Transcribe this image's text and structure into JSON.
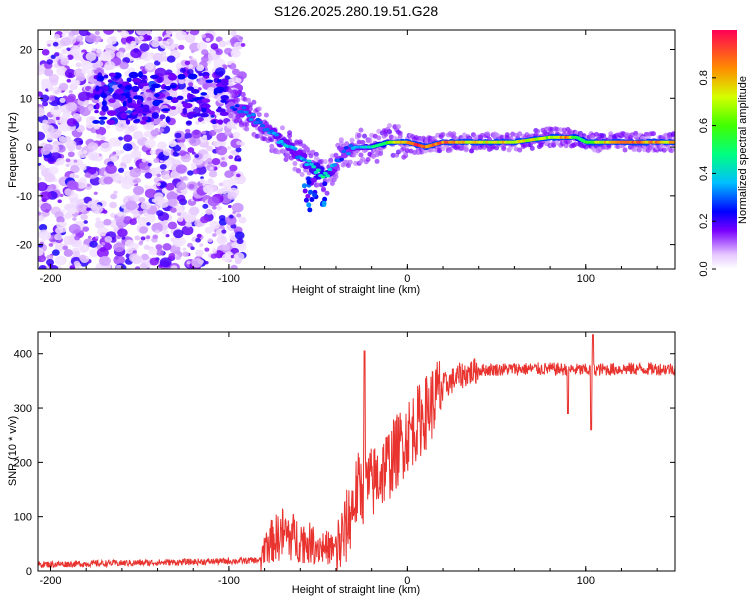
{
  "title": "S126.2025.280.19.51.G28",
  "chart_data": [
    {
      "type": "heatmap",
      "xlabel": "Height of straight line (km)",
      "ylabel": "Frequency (Hz)",
      "xlim": [
        -207,
        150
      ],
      "ylim": [
        -25,
        24
      ],
      "xticks": [
        -200,
        -100,
        0,
        100
      ],
      "yticks": [
        -20,
        -10,
        0,
        10,
        20
      ],
      "colorbar": {
        "label": "Normalized spectral amplitude",
        "range": [
          0,
          1
        ],
        "ticks": [
          "0.0",
          "0.2",
          "0.4",
          "0.6",
          "0.8"
        ],
        "tick_values": [
          0.0,
          0.2,
          0.4,
          0.6,
          0.8
        ]
      },
      "ridge": {
        "x": [
          -100,
          -90,
          -80,
          -70,
          -60,
          -50,
          -45,
          -40,
          -35,
          -30,
          -20,
          -10,
          0,
          10,
          20,
          40,
          60,
          80,
          90,
          95,
          100,
          120,
          150
        ],
        "freq": [
          9,
          7,
          4,
          1,
          -2,
          -5,
          -6,
          -3,
          -1,
          0,
          0,
          1,
          1,
          0,
          1,
          1,
          1,
          2,
          2,
          2,
          1,
          1,
          1
        ],
        "amplitude": [
          0.25,
          0.35,
          0.3,
          0.4,
          0.35,
          0.45,
          0.5,
          0.3,
          0.3,
          0.35,
          0.45,
          0.6,
          0.9,
          0.95,
          0.9,
          0.75,
          0.8,
          0.7,
          0.9,
          0.5,
          0.6,
          0.95,
          0.8
        ]
      }
    },
    {
      "type": "line",
      "xlabel": "Height of straight line (km)",
      "ylabel": "SNR (10 * v/v)",
      "xlim": [
        -207,
        150
      ],
      "ylim": [
        0,
        440
      ],
      "xticks": [
        -200,
        -100,
        0,
        100
      ],
      "yticks": [
        0,
        100,
        200,
        300,
        400
      ],
      "color": "#e8332f",
      "envelope": {
        "x": [
          -207,
          -150,
          -100,
          -82,
          -80,
          -70,
          -60,
          -50,
          -40,
          -35,
          -28,
          -20,
          -10,
          0,
          10,
          20,
          30,
          40,
          60,
          80,
          100,
          120,
          150
        ],
        "y": [
          12,
          15,
          18,
          20,
          40,
          60,
          50,
          40,
          35,
          70,
          150,
          160,
          200,
          250,
          290,
          340,
          360,
          370,
          372,
          372,
          370,
          372,
          372
        ]
      },
      "annotations": [
        {
          "x": -24,
          "y": 405
        },
        {
          "x": 90,
          "y": 290
        },
        {
          "x": 104,
          "y": 435
        },
        {
          "x": 103,
          "y": 260
        }
      ]
    }
  ]
}
